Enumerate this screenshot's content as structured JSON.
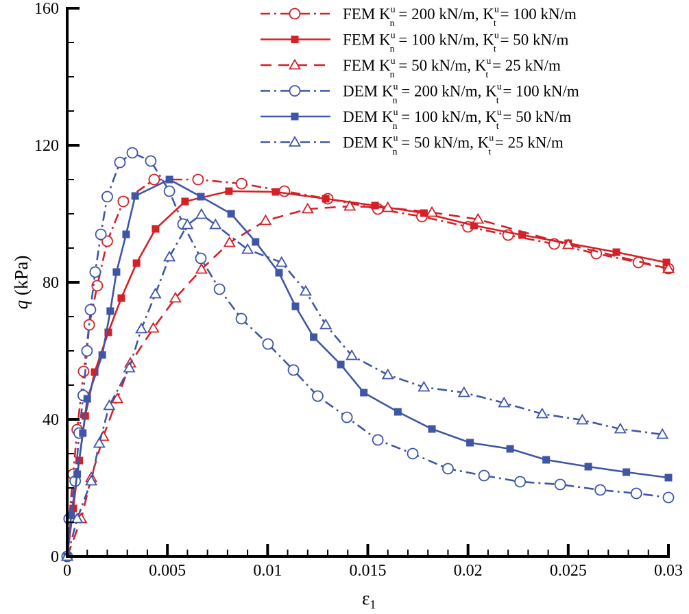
{
  "chart_data": {
    "type": "line",
    "title": "",
    "xlabel": "ε",
    "xlabel_sub": "1",
    "ylabel_var": "q",
    "ylabel_unit": "(kPa)",
    "xlim": [
      0,
      0.03
    ],
    "ylim": [
      0,
      160
    ],
    "x_ticks": [
      0,
      0.005,
      0.01,
      0.015,
      0.02,
      0.025,
      0.03
    ],
    "x_tick_labels": [
      "0",
      "0.005",
      "0.01",
      "0.015",
      "0.02",
      "0.025",
      "0.03"
    ],
    "y_ticks": [
      0,
      40,
      80,
      120,
      160
    ],
    "y_tick_labels": [
      "0",
      "40",
      "80",
      "120",
      "160"
    ],
    "grid": false,
    "legend_position": "top-right",
    "legend_symbols": {
      "k": "K",
      "sub_n": "n",
      "sub_t": "t",
      "sup": "u",
      "eq": " = ",
      "sep": ", "
    },
    "series": [
      {
        "name": "FEM Kn = 200 kN/m, Kt = 100 kN/m",
        "method": "FEM",
        "kn": "200 kN/m",
        "kt": "100 kN/m",
        "color": "#d42027",
        "marker": "circle",
        "dash": "dashdot",
        "points": [
          [
            0,
            0
          ],
          [
            0.0001,
            11
          ],
          [
            0.0003,
            24
          ],
          [
            0.0005,
            37
          ],
          [
            0.00082,
            54
          ],
          [
            0.0011,
            67.6
          ],
          [
            0.0015,
            79
          ],
          [
            0.002,
            92
          ],
          [
            0.0028,
            103.6
          ],
          [
            0.00434,
            110
          ],
          [
            0.00653,
            110
          ],
          [
            0.0087,
            108.8
          ],
          [
            0.01084,
            106.6
          ],
          [
            0.013,
            104.4
          ],
          [
            0.0155,
            101.4
          ],
          [
            0.0177,
            99.2
          ],
          [
            0.02,
            96.2
          ],
          [
            0.022,
            93.8
          ],
          [
            0.0243,
            91.2
          ],
          [
            0.0264,
            88.4
          ],
          [
            0.0285,
            85.8
          ],
          [
            0.03,
            84
          ]
        ]
      },
      {
        "name": "FEM Kn = 100 kN/m, Kt = 50 kN/m",
        "method": "FEM",
        "kn": "100 kN/m",
        "kt": "50 kN/m",
        "color": "#d42027",
        "marker": "square",
        "dash": "solid",
        "points": [
          [
            0,
            0
          ],
          [
            0.0003,
            14
          ],
          [
            0.0006,
            28
          ],
          [
            0.0009,
            41
          ],
          [
            0.00137,
            53.8
          ],
          [
            0.00205,
            65.4
          ],
          [
            0.0027,
            75.4
          ],
          [
            0.00346,
            85.6
          ],
          [
            0.00441,
            95.6
          ],
          [
            0.00588,
            103.6
          ],
          [
            0.00807,
            106.6
          ],
          [
            0.0104,
            106.4
          ],
          [
            0.0129,
            104.4
          ],
          [
            0.01536,
            102.4
          ],
          [
            0.0178,
            100.2
          ],
          [
            0.0203,
            96.6
          ],
          [
            0.0227,
            93.8
          ],
          [
            0.025,
            91.4
          ],
          [
            0.0274,
            88.8
          ],
          [
            0.0299,
            85.8
          ]
        ]
      },
      {
        "name": "FEM Kn = 50 kN/m, Kt = 25 kN/m",
        "method": "FEM",
        "kn": "50 kN/m",
        "kt": "25 kN/m",
        "color": "#d42027",
        "marker": "triangle",
        "dash": "dash",
        "points": [
          [
            0,
            0
          ],
          [
            0.0007,
            11
          ],
          [
            0.0012,
            23
          ],
          [
            0.0018,
            35
          ],
          [
            0.0025,
            46
          ],
          [
            0.00315,
            56.4
          ],
          [
            0.0043,
            66.6
          ],
          [
            0.0054,
            75.4
          ],
          [
            0.0067,
            83.8
          ],
          [
            0.0081,
            91.6
          ],
          [
            0.0099,
            98
          ],
          [
            0.012,
            101.4
          ],
          [
            0.0141,
            102.2
          ],
          [
            0.016,
            101.8
          ],
          [
            0.0182,
            100.4
          ],
          [
            0.0205,
            98.4
          ],
          [
            0.025,
            91
          ],
          [
            0.03,
            84
          ]
        ]
      },
      {
        "name": "DEM Kn = 200 kN/m, Kt = 100 kN/m",
        "method": "DEM",
        "kn": "200 kN/m",
        "kt": "100 kN/m",
        "color": "#3f56a6",
        "marker": "circle",
        "dash": "dashdot",
        "points": [
          [
            0,
            0
          ],
          [
            0.0001,
            11
          ],
          [
            0.0004,
            22
          ],
          [
            0.0006,
            36
          ],
          [
            0.0008,
            47
          ],
          [
            0.00099,
            60
          ],
          [
            0.00116,
            72
          ],
          [
            0.0014,
            83
          ],
          [
            0.00168,
            94
          ],
          [
            0.002,
            105
          ],
          [
            0.00263,
            115
          ],
          [
            0.00325,
            117.8
          ],
          [
            0.00417,
            115.4
          ],
          [
            0.0051,
            106.6
          ],
          [
            0.00578,
            97
          ],
          [
            0.00667,
            87
          ],
          [
            0.0076,
            78
          ],
          [
            0.00869,
            69.4
          ],
          [
            0.01002,
            62
          ],
          [
            0.01129,
            54.4
          ],
          [
            0.0125,
            46.8
          ],
          [
            0.01396,
            40.6
          ],
          [
            0.0155,
            34
          ],
          [
            0.01724,
            30
          ],
          [
            0.019,
            25.6
          ],
          [
            0.0208,
            23.6
          ],
          [
            0.0226,
            21.8
          ],
          [
            0.0246,
            21
          ],
          [
            0.0266,
            19.4
          ],
          [
            0.0284,
            18.4
          ],
          [
            0.03,
            17.2
          ]
        ]
      },
      {
        "name": "DEM Kn = 100 kN/m, Kt = 50 kN/m",
        "method": "DEM",
        "kn": "100 kN/m",
        "kt": "50 kN/m",
        "color": "#3f56a6",
        "marker": "square",
        "dash": "solid",
        "points": [
          [
            0,
            0
          ],
          [
            0.0002,
            12
          ],
          [
            0.0005,
            24
          ],
          [
            0.00078,
            36
          ],
          [
            0.001,
            46
          ],
          [
            0.00175,
            58.8
          ],
          [
            0.00215,
            71.6
          ],
          [
            0.00246,
            83
          ],
          [
            0.00294,
            94
          ],
          [
            0.00339,
            105.2
          ],
          [
            0.0051,
            110
          ],
          [
            0.00667,
            105
          ],
          [
            0.00818,
            100
          ],
          [
            0.0094,
            91.8
          ],
          [
            0.01057,
            82.8
          ],
          [
            0.01139,
            73
          ],
          [
            0.0123,
            64
          ],
          [
            0.01365,
            56
          ],
          [
            0.0148,
            47.8
          ],
          [
            0.0165,
            42.2
          ],
          [
            0.0182,
            37.2
          ],
          [
            0.0201,
            33.2
          ],
          [
            0.0221,
            31.4
          ],
          [
            0.0239,
            28.2
          ],
          [
            0.026,
            26.2
          ],
          [
            0.0279,
            24.6
          ],
          [
            0.03,
            23
          ]
        ]
      },
      {
        "name": "DEM Kn = 50 kN/m, Kt = 25 kN/m",
        "method": "DEM",
        "kn": "50 kN/m",
        "kt": "25 kN/m",
        "color": "#3f56a6",
        "marker": "triangle",
        "dash": "dashdot",
        "points": [
          [
            0,
            0
          ],
          [
            0.0005,
            11
          ],
          [
            0.0012,
            22
          ],
          [
            0.0016,
            33
          ],
          [
            0.0021,
            44
          ],
          [
            0.0031,
            55
          ],
          [
            0.0037,
            66.4
          ],
          [
            0.0044,
            76.6
          ],
          [
            0.0051,
            87.4
          ],
          [
            0.006,
            96.8
          ],
          [
            0.0067,
            99.8
          ],
          [
            0.0074,
            96.8
          ],
          [
            0.009,
            89.6
          ],
          [
            0.0107,
            85.8
          ],
          [
            0.0119,
            77.4
          ],
          [
            0.0129,
            67.6
          ],
          [
            0.0142,
            58.6
          ],
          [
            0.016,
            53
          ],
          [
            0.0178,
            49.4
          ],
          [
            0.0198,
            47.8
          ],
          [
            0.0218,
            44.8
          ],
          [
            0.0237,
            41.6
          ],
          [
            0.0257,
            39.8
          ],
          [
            0.0276,
            37.2
          ],
          [
            0.0297,
            35.6
          ]
        ]
      }
    ]
  }
}
